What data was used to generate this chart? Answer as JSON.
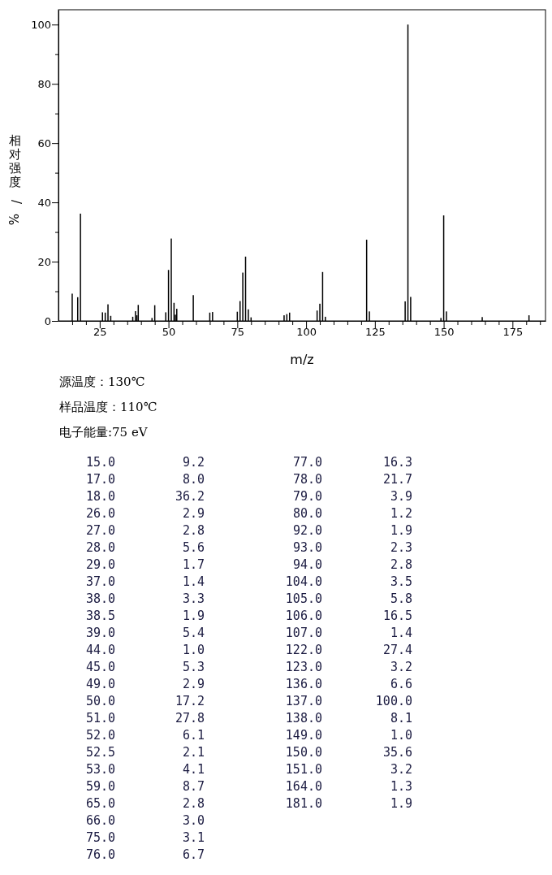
{
  "chart_data": [
    {
      "type": "bar",
      "xlabel": "m/z",
      "ylabel": "相对强度/%",
      "x": [
        15,
        17,
        18,
        26,
        27,
        28,
        29,
        37,
        38,
        38.5,
        39,
        44,
        45,
        49,
        50,
        51,
        52,
        52.5,
        53,
        59,
        65,
        66,
        75,
        76,
        77,
        78,
        79,
        80,
        92,
        93,
        94,
        104,
        105,
        106,
        107,
        122,
        123,
        136,
        137,
        138,
        149,
        150,
        151,
        164,
        181
      ],
      "values": [
        9.2,
        8.0,
        36.2,
        2.9,
        2.8,
        5.6,
        1.7,
        1.4,
        3.3,
        1.9,
        5.4,
        1.0,
        5.3,
        2.9,
        17.2,
        27.8,
        6.1,
        2.1,
        4.1,
        8.7,
        2.8,
        3.0,
        3.1,
        6.7,
        16.3,
        21.7,
        3.9,
        1.2,
        1.9,
        2.3,
        2.8,
        3.5,
        5.8,
        16.5,
        1.4,
        27.4,
        3.2,
        6.6,
        100.0,
        8.1,
        1.0,
        35.6,
        3.2,
        1.3,
        1.9
      ],
      "color": "#000000",
      "xlim": [
        10,
        187
      ],
      "xticks": [
        {
          "value": 15,
          "label": null
        },
        {
          "value": 20,
          "label": null
        },
        25,
        {
          "value": 30,
          "label": null
        },
        {
          "value": 35,
          "label": null
        },
        {
          "value": 40,
          "label": null
        },
        {
          "value": 45,
          "label": null
        },
        50,
        {
          "value": 55,
          "label": null
        },
        {
          "value": 60,
          "label": null
        },
        {
          "value": 65,
          "label": null
        },
        {
          "value": 70,
          "label": null
        },
        75,
        {
          "value": 80,
          "label": null
        },
        {
          "value": 85,
          "label": null
        },
        {
          "value": 90,
          "label": null
        },
        {
          "value": 95,
          "label": null
        },
        100,
        {
          "value": 105,
          "label": null
        },
        {
          "value": 110,
          "label": null
        },
        {
          "value": 115,
          "label": null
        },
        {
          "value": 120,
          "label": null
        },
        125,
        {
          "value": 130,
          "label": null
        },
        {
          "value": 135,
          "label": null
        },
        {
          "value": 140,
          "label": null
        },
        {
          "value": 145,
          "label": null
        },
        150,
        {
          "value": 155,
          "label": null
        },
        {
          "value": 160,
          "label": null
        },
        {
          "value": 165,
          "label": null
        },
        {
          "value": 170,
          "label": null
        },
        175,
        {
          "value": 180,
          "label": null
        },
        {
          "value": 185,
          "label": null
        }
      ],
      "ylim": [
        0,
        105
      ],
      "yticks": [
        0,
        {
          "value": 10,
          "label": null
        },
        20,
        {
          "value": 30,
          "label": null
        },
        40,
        {
          "value": 50,
          "label": null
        },
        60,
        {
          "value": 70,
          "label": null
        },
        80,
        {
          "value": 90,
          "label": null
        },
        100
      ],
      "annotations": [
        "源温度：130℃",
        "样品温度：110℃",
        "电子能量:75 eV"
      ]
    },
    {
      "type": "other",
      "categories": [
        "15.0",
        "17.0",
        "18.0",
        "26.0",
        "27.0",
        "28.0",
        "29.0",
        "37.0",
        "38.0",
        "38.5",
        "39.0",
        "44.0",
        "45.0",
        "49.0",
        "50.0",
        "51.0",
        "52.0",
        "52.5",
        "53.0",
        "59.0",
        "65.0",
        "66.0",
        "75.0",
        "76.0",
        "77.0",
        "78.0",
        "79.0",
        "80.0",
        "92.0",
        "93.0",
        "94.0",
        "104.0",
        "105.0",
        "106.0",
        "107.0",
        "122.0",
        "123.0",
        "136.0",
        "137.0",
        "138.0",
        "149.0",
        "150.0",
        "151.0",
        "164.0",
        "181.0"
      ],
      "value_labels": [
        "9.2",
        "8.0",
        "36.2",
        "2.9",
        "2.8",
        "5.6",
        "1.7",
        "1.4",
        "3.3",
        "1.9",
        "5.4",
        "1.0",
        "5.3",
        "2.9",
        "17.2",
        "27.8",
        "6.1",
        "2.1",
        "4.1",
        "8.7",
        "2.8",
        "3.0",
        "3.1",
        "6.7",
        "16.3",
        "21.7",
        "3.9",
        "1.2",
        "1.9",
        "2.3",
        "2.8",
        "3.5",
        "5.8",
        "16.5",
        "1.4",
        "27.4",
        "3.2",
        "6.6",
        "100.0",
        "8.1",
        "1.0",
        "35.6",
        "3.2",
        "1.3",
        "1.9"
      ]
    }
  ]
}
